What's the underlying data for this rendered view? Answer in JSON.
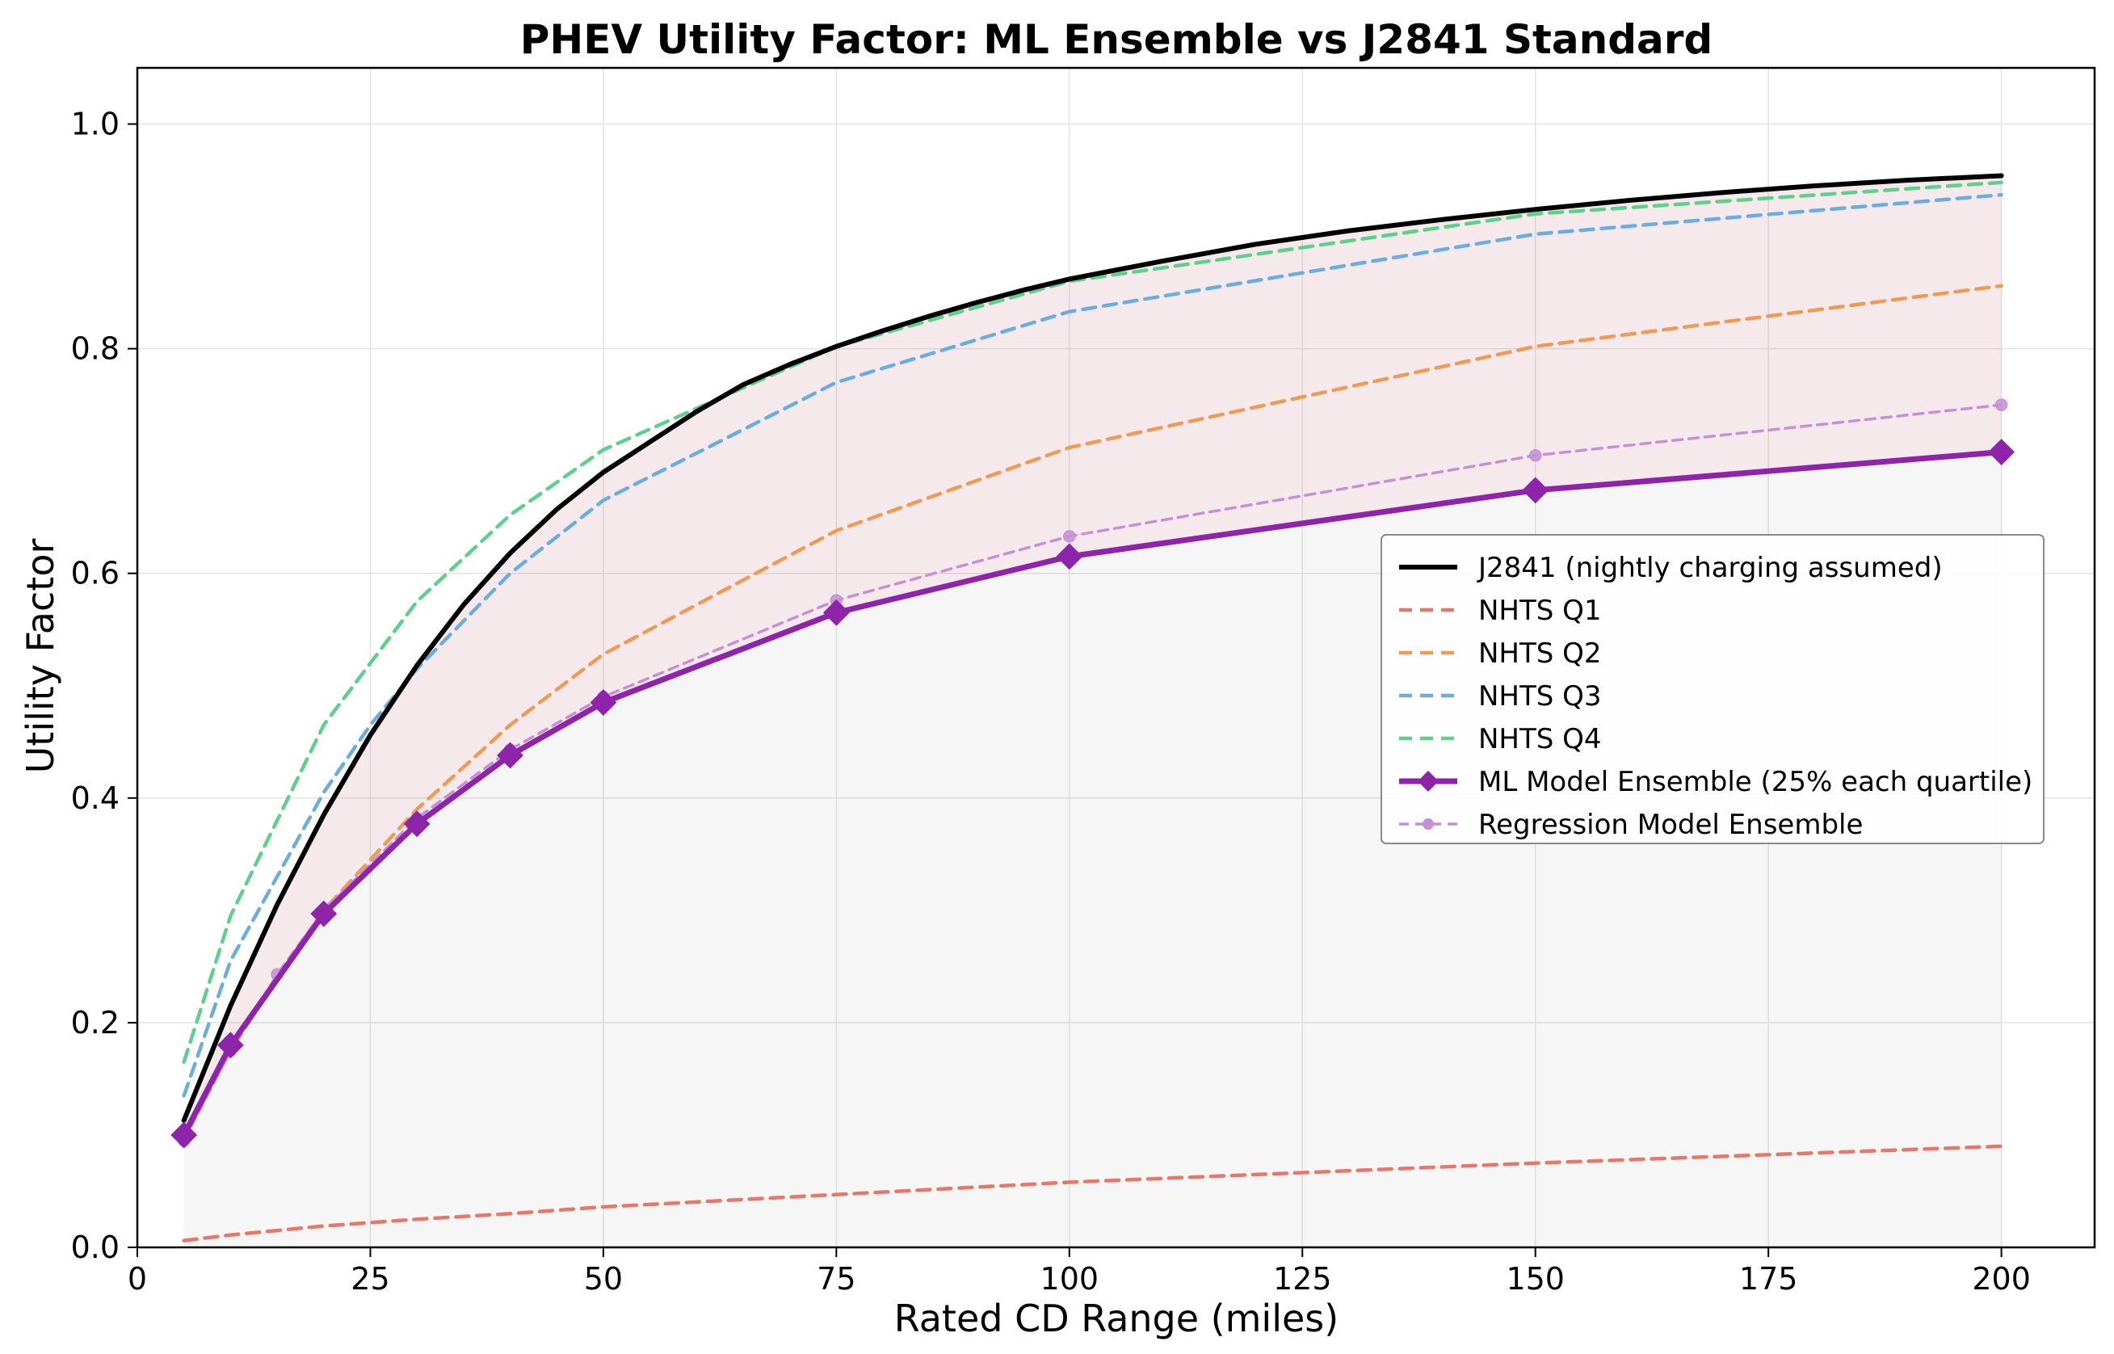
{
  "chart_data": {
    "type": "line",
    "title": "PHEV Utility Factor: ML Ensemble vs J2841 Standard",
    "xlabel": "Rated CD Range (miles)",
    "ylabel": "Utility Factor",
    "xlim": [
      0,
      210
    ],
    "ylim": [
      0,
      1.05
    ],
    "xticks": [
      0,
      25,
      50,
      75,
      100,
      125,
      150,
      175,
      200
    ],
    "yticks": [
      0.0,
      0.2,
      0.4,
      0.6,
      0.8,
      1.0
    ],
    "grid": true,
    "legend_position": "center-right",
    "series": [
      {
        "name": "J2841 (nightly charging assumed)",
        "color": "#000000",
        "style": "solid",
        "marker": "none",
        "x": [
          5,
          10,
          15,
          20,
          25,
          30,
          35,
          40,
          45,
          50,
          55,
          60,
          65,
          70,
          75,
          80,
          85,
          90,
          95,
          100,
          110,
          120,
          130,
          140,
          150,
          160,
          170,
          180,
          190,
          200
        ],
        "y": [
          0.113,
          0.215,
          0.305,
          0.385,
          0.456,
          0.518,
          0.572,
          0.618,
          0.657,
          0.69,
          0.717,
          0.744,
          0.768,
          0.786,
          0.802,
          0.816,
          0.829,
          0.841,
          0.852,
          0.862,
          0.878,
          0.893,
          0.905,
          0.915,
          0.924,
          0.932,
          0.939,
          0.945,
          0.95,
          0.954
        ]
      },
      {
        "name": "NHTS Q1",
        "color": "#e8776a",
        "style": "dashed",
        "marker": "none",
        "x": [
          5,
          10,
          15,
          20,
          25,
          30,
          40,
          50,
          75,
          100,
          150,
          200
        ],
        "y": [
          0.006,
          0.011,
          0.015,
          0.019,
          0.022,
          0.025,
          0.03,
          0.036,
          0.047,
          0.058,
          0.075,
          0.09
        ]
      },
      {
        "name": "NHTS Q2",
        "color": "#ef9a55",
        "style": "dashed",
        "marker": "none",
        "x": [
          5,
          10,
          15,
          20,
          25,
          30,
          40,
          50,
          75,
          100,
          150,
          200
        ],
        "y": [
          0.098,
          0.175,
          0.24,
          0.3,
          0.345,
          0.39,
          0.465,
          0.528,
          0.638,
          0.712,
          0.802,
          0.856
        ]
      },
      {
        "name": "NHTS Q3",
        "color": "#6aaee0",
        "style": "dashed",
        "marker": "none",
        "x": [
          5,
          10,
          15,
          20,
          25,
          30,
          40,
          50,
          75,
          100,
          150,
          200
        ],
        "y": [
          0.135,
          0.255,
          0.33,
          0.405,
          0.465,
          0.515,
          0.6,
          0.665,
          0.77,
          0.833,
          0.902,
          0.937
        ]
      },
      {
        "name": "NHTS Q4",
        "color": "#5dd08a",
        "style": "dashed",
        "marker": "none",
        "x": [
          5,
          10,
          15,
          20,
          25,
          30,
          40,
          50,
          75,
          100,
          150,
          200
        ],
        "y": [
          0.165,
          0.295,
          0.38,
          0.465,
          0.52,
          0.575,
          0.652,
          0.71,
          0.802,
          0.86,
          0.92,
          0.948
        ]
      },
      {
        "name": "ML Model Ensemble (25% each quartile)",
        "color": "#8e24aa",
        "style": "solid",
        "marker": "diamond",
        "x": [
          5,
          10,
          20,
          30,
          40,
          50,
          75,
          100,
          150,
          200
        ],
        "y": [
          0.1,
          0.18,
          0.297,
          0.377,
          0.438,
          0.485,
          0.565,
          0.615,
          0.674,
          0.708
        ]
      },
      {
        "name": "Regression Model Ensemble",
        "color": "#c68fd6",
        "style": "dashed",
        "marker": "circle",
        "x": [
          5,
          10,
          15,
          20,
          30,
          40,
          50,
          75,
          100,
          150,
          200
        ],
        "y": [
          0.095,
          0.175,
          0.243,
          0.3,
          0.382,
          0.443,
          0.49,
          0.576,
          0.633,
          0.705,
          0.75
        ]
      }
    ]
  }
}
